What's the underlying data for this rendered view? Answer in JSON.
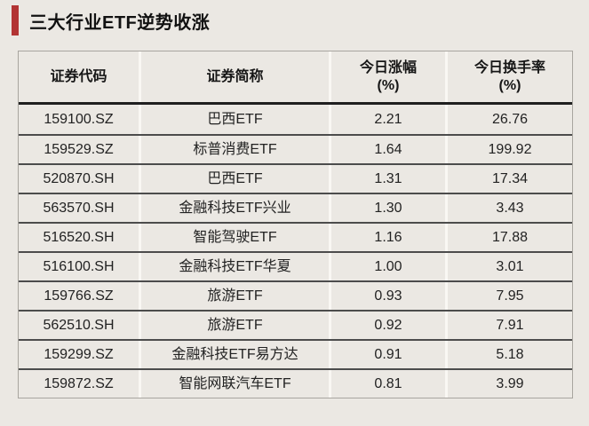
{
  "header": {
    "title": "三大行业ETF逆势收涨"
  },
  "colors": {
    "page_background": "#ebe8e3",
    "accent_red": "#b23434",
    "row_divider": "#4c4c4c",
    "column_divider": "#f9f7f3",
    "outer_border": "#a8a59f",
    "header_rule": "#1f1f1f",
    "text": "#1e1e1e"
  },
  "chart_data": {
    "type": "table",
    "title": "三大行业ETF逆势收涨",
    "columns": [
      {
        "label": "证券代码",
        "unit": ""
      },
      {
        "label": "证券简称",
        "unit": ""
      },
      {
        "label": "今日涨幅",
        "unit": "(%)"
      },
      {
        "label": "今日换手率",
        "unit": "(%)"
      }
    ],
    "rows": [
      {
        "code": "159100.SZ",
        "name": "巴西ETF",
        "change_pct": "2.21",
        "turnover_pct": "26.76"
      },
      {
        "code": "159529.SZ",
        "name": "标普消费ETF",
        "change_pct": "1.64",
        "turnover_pct": "199.92"
      },
      {
        "code": "520870.SH",
        "name": "巴西ETF",
        "change_pct": "1.31",
        "turnover_pct": "17.34"
      },
      {
        "code": "563570.SH",
        "name": "金融科技ETF兴业",
        "change_pct": "1.30",
        "turnover_pct": "3.43"
      },
      {
        "code": "516520.SH",
        "name": "智能驾驶ETF",
        "change_pct": "1.16",
        "turnover_pct": "17.88"
      },
      {
        "code": "516100.SH",
        "name": "金融科技ETF华夏",
        "change_pct": "1.00",
        "turnover_pct": "3.01"
      },
      {
        "code": "159766.SZ",
        "name": "旅游ETF",
        "change_pct": "0.93",
        "turnover_pct": "7.95"
      },
      {
        "code": "562510.SH",
        "name": "旅游ETF",
        "change_pct": "0.92",
        "turnover_pct": "7.91"
      },
      {
        "code": "159299.SZ",
        "name": "金融科技ETF易方达",
        "change_pct": "0.91",
        "turnover_pct": "5.18"
      },
      {
        "code": "159872.SZ",
        "name": "智能网联汽车ETF",
        "change_pct": "0.81",
        "turnover_pct": "3.99"
      }
    ]
  }
}
